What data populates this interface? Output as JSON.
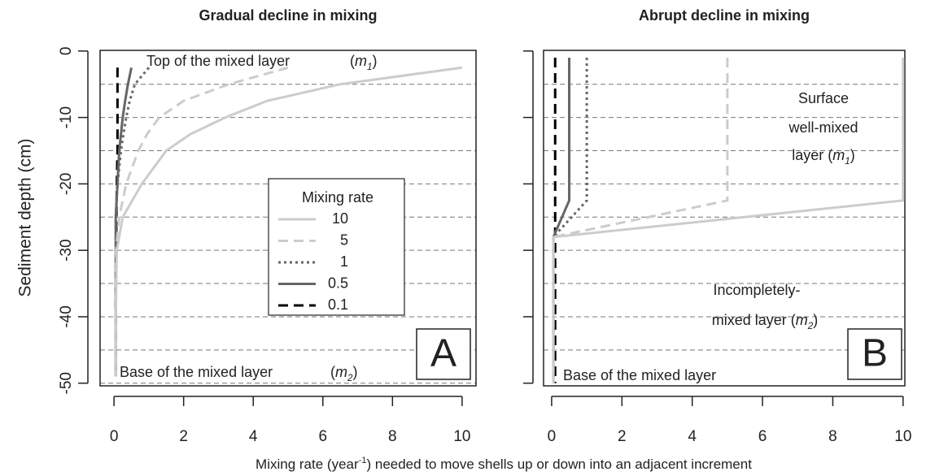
{
  "chart_data": [
    {
      "type": "line",
      "title": "Gradual decline in mixing",
      "ylabel": "Sediment depth (cm)",
      "panel": "A",
      "legend_title": "Mixing rate",
      "legend": true,
      "xlim": [
        -0.4,
        10.4
      ],
      "xticks": [
        0,
        2,
        4,
        6,
        8,
        10
      ],
      "ylim": [
        -50.4,
        0.1
      ],
      "yticks": [
        0,
        -10,
        -20,
        -30,
        -40,
        -50
      ],
      "ytick_labels": true,
      "grid_lines": [
        -5,
        -10,
        -15,
        -20,
        -25,
        -30,
        -35,
        -40,
        -45,
        -50
      ],
      "y": [
        -2.5,
        -5,
        -7.5,
        -10,
        -12.5,
        -15,
        -20,
        -25,
        -30,
        -40,
        -49
      ],
      "series": [
        {
          "name": "10",
          "color": "#cccccc",
          "dash": "solid",
          "x": [
            10,
            6.5,
            4.4,
            3.2,
            2.2,
            1.5,
            0.8,
            0.25,
            0.08,
            0.05,
            0.05
          ]
        },
        {
          "name": "5",
          "color": "#cccccc",
          "dash": "dashed",
          "x": [
            5,
            3.3,
            2.0,
            1.3,
            0.95,
            0.7,
            0.35,
            0.15,
            0.06,
            0.05,
            0.05
          ]
        },
        {
          "name": "1",
          "color": "#666666",
          "dash": "dotted",
          "x": [
            1.0,
            0.6,
            0.45,
            0.35,
            0.27,
            0.2,
            0.1,
            0.05,
            0.05,
            0.05,
            0.05
          ]
        },
        {
          "name": "0.5",
          "color": "#666666",
          "dash": "solid",
          "x": [
            0.5,
            0.4,
            0.32,
            0.25,
            0.2,
            0.15,
            0.1,
            0.05,
            0.05,
            0.05,
            0.05
          ]
        },
        {
          "name": "0.1",
          "color": "#000000",
          "dash": "dashed",
          "x": [
            0.1,
            0.1,
            0.1,
            0.1,
            0.1,
            0.1,
            0.08,
            0.07,
            0.06,
            0.05,
            0.05
          ]
        }
      ],
      "annotations": [
        {
          "parts": [
            "Top of the mixed layer"
          ],
          "styles": [
            "normal"
          ]
        },
        {
          "parts": [
            "(",
            "m",
            "1",
            ")"
          ],
          "styles": [
            "normal",
            "italic",
            "sub",
            "normal"
          ]
        },
        {
          "parts": [
            "Base of the mixed layer"
          ],
          "styles": [
            "normal"
          ]
        },
        {
          "parts": [
            "(",
            "m",
            "2",
            ")"
          ],
          "styles": [
            "normal",
            "italic",
            "sub",
            "normal"
          ]
        }
      ]
    },
    {
      "type": "line",
      "title": "Abrupt decline in mixing",
      "panel": "B",
      "legend": false,
      "xlim": [
        -0.23,
        10.05
      ],
      "xticks": [
        0,
        2,
        4,
        6,
        8,
        10
      ],
      "ylim": [
        -50.4,
        0.1
      ],
      "yticks": [
        0,
        -10,
        -20,
        -30,
        -40,
        -50
      ],
      "ytick_labels": false,
      "grid_lines": [
        -5,
        -10,
        -15,
        -20,
        -25,
        -30,
        -35,
        -40,
        -45
      ],
      "y": [
        -1,
        -22.5,
        -28,
        -50
      ],
      "series": [
        {
          "color": "#cccccc",
          "dash": "solid",
          "x": [
            10,
            10,
            0.05,
            0.05
          ]
        },
        {
          "color": "#cccccc",
          "dash": "dashed",
          "x": [
            5,
            5,
            0.05,
            0.05
          ]
        },
        {
          "color": "#666666",
          "dash": "dotted",
          "x": [
            1,
            1,
            0.05,
            0.05
          ]
        },
        {
          "color": "#666666",
          "dash": "solid",
          "x": [
            0.5,
            0.5,
            0.05,
            0.05
          ]
        },
        {
          "color": "#000000",
          "dash": "dashed",
          "x": [
            0.1,
            0.1,
            0.1,
            0.1
          ]
        }
      ],
      "annotations": [
        {
          "parts": [
            "Surface"
          ],
          "styles": [
            "normal"
          ]
        },
        {
          "parts": [
            "well-mixed"
          ],
          "styles": [
            "normal"
          ]
        },
        {
          "parts": [
            "layer (",
            "m",
            "1",
            ")"
          ],
          "styles": [
            "normal",
            "italic",
            "sub",
            "normal"
          ]
        },
        {
          "parts": [
            "Incompletely-"
          ],
          "styles": [
            "normal"
          ]
        },
        {
          "parts": [
            "mixed layer (",
            "m",
            "2",
            ")"
          ],
          "styles": [
            "normal",
            "italic",
            "sub",
            "normal"
          ]
        },
        {
          "parts": [
            "Base of the mixed layer"
          ],
          "styles": [
            "normal"
          ]
        }
      ]
    }
  ],
  "xlabel": {
    "parts": [
      "Mixing rate (year",
      "-1",
      ") needed to move shells up or down into an adjacent increment"
    ],
    "styles": [
      "normal",
      "sup",
      "normal"
    ]
  }
}
